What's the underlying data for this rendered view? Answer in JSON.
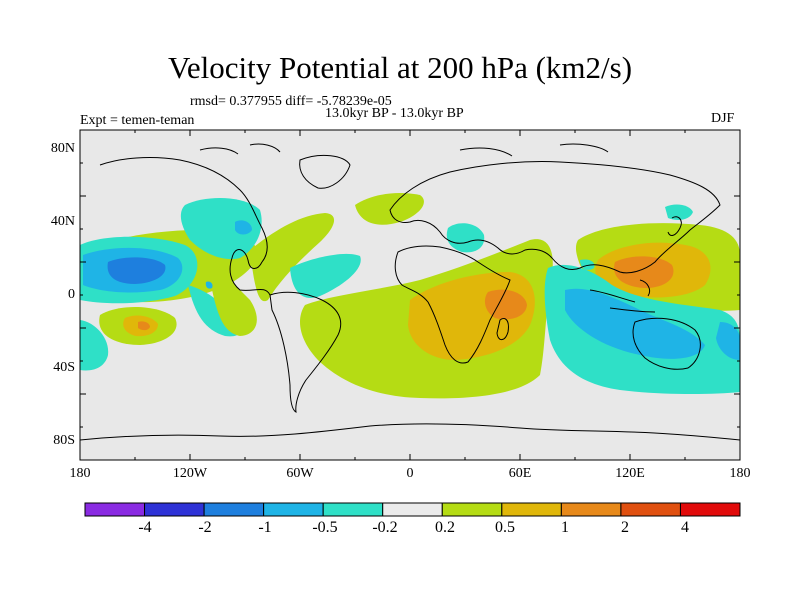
{
  "header": {
    "title": "Velocity Potential at 200 hPa (km2/s)",
    "stats": "rmsd= 0.377955 diff= -5.78239e-05",
    "period": "13.0kyr BP - 13.0kyr BP",
    "experiment": "Expt = temen-teman",
    "season": "DJF"
  },
  "map": {
    "lat_labels": [
      "80N",
      "40N",
      "0",
      "40S",
      "80S"
    ],
    "lon_labels": [
      "180",
      "120W",
      "60W",
      "0",
      "60E",
      "120E",
      "180"
    ]
  },
  "colorbar": {
    "colors": [
      "#8a2be2",
      "#2e32d6",
      "#1e7fde",
      "#1fb4e6",
      "#2fe0c7",
      "#ebebeb",
      "#b5dc14",
      "#e0b70a",
      "#e7891a",
      "#e05010",
      "#e10a0a"
    ],
    "labels": [
      "-4",
      "-2",
      "-1",
      "-0.5",
      "-0.2",
      "0.2",
      "0.5",
      "1",
      "2",
      "4"
    ]
  }
}
